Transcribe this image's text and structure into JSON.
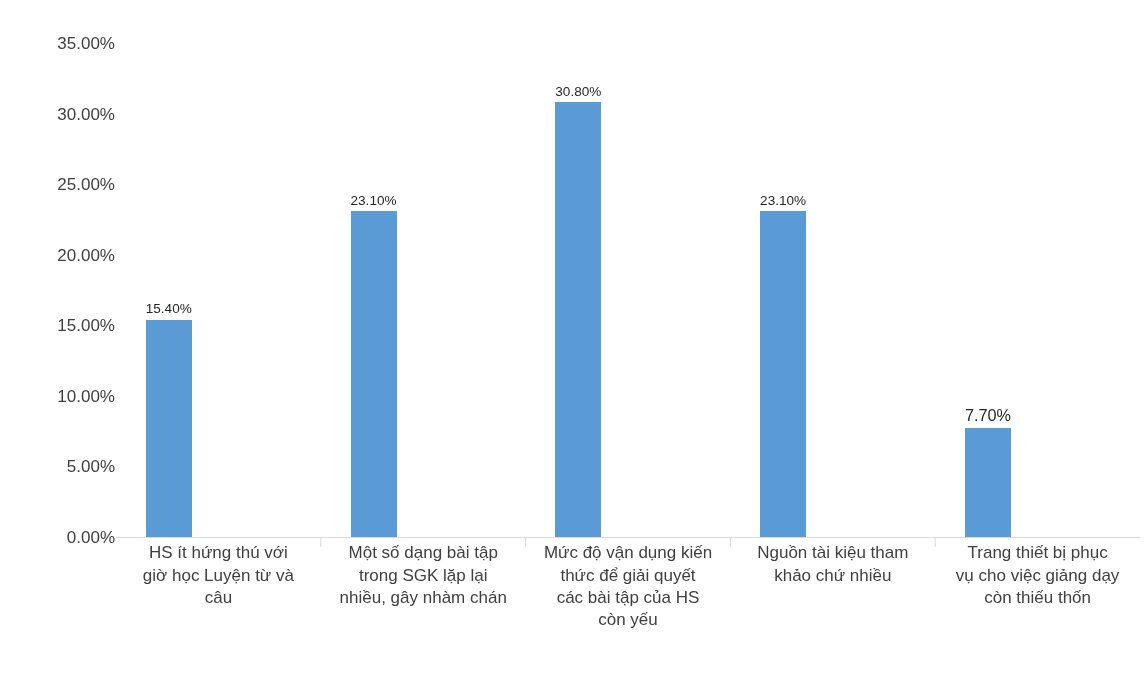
{
  "chart_data": {
    "type": "bar",
    "categories": [
      "HS ít hứng thú với giờ học Luyện từ và câu",
      "Một số dạng bài tập trong SGK lặp lại nhiều, gây nhàm chán",
      "Mức độ vận dụng kiến thức để giải quyết các bài tập của HS còn yếu",
      "Nguồn tài kiệu tham khảo chứ nhiều",
      "Trang thiết bị phục vụ cho việc giảng dạy còn thiếu thốn"
    ],
    "values": [
      15.4,
      23.1,
      30.8,
      23.1,
      7.7
    ],
    "value_labels": [
      "15.40%",
      "23.10%",
      "30.80%",
      "23.10%",
      "7.70%"
    ],
    "color": "#5b9bd5",
    "ylim": [
      0,
      35
    ],
    "yticks": [
      {
        "value": 0,
        "label": "0.00%"
      },
      {
        "value": 5,
        "label": "5.00%"
      },
      {
        "value": 10,
        "label": "10.00%"
      },
      {
        "value": 15,
        "label": "15.00%"
      },
      {
        "value": 20,
        "label": "20.00%"
      },
      {
        "value": 25,
        "label": "25.00%"
      },
      {
        "value": 30,
        "label": "30.00%"
      },
      {
        "value": 35,
        "label": "35.00%"
      }
    ],
    "grid": false
  }
}
